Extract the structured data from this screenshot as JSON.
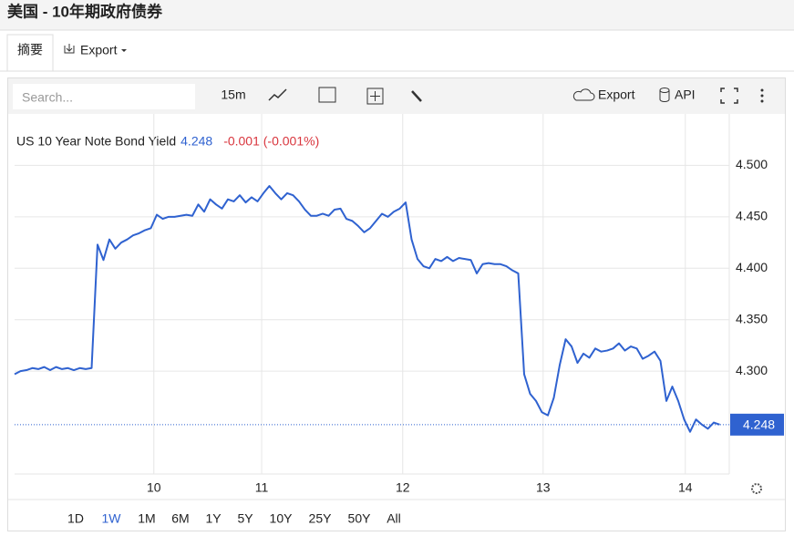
{
  "header": {
    "title": "美国 - 10年期政府债券"
  },
  "tabs": [
    "摘要",
    "Export"
  ],
  "toolbar": {
    "search_placeholder": "Search...",
    "interval": "15m",
    "export": "Export",
    "api": "API"
  },
  "chart_data": {
    "type": "line",
    "change": "-0.001 (-0.001%)",
    "series": [
      {
        "name": "US 10 Year Note Bond Yield",
        "color": "#2f62d0",
        "values": [
          4.297,
          4.3,
          4.301,
          4.303,
          4.302,
          4.304,
          4.301,
          4.304,
          4.302,
          4.303,
          4.301,
          4.303,
          4.302,
          4.303,
          4.423,
          4.408,
          4.428,
          4.419,
          4.425,
          4.428,
          4.432,
          4.434,
          4.437,
          4.439,
          4.452,
          4.448,
          4.45,
          4.45,
          4.451,
          4.452,
          4.451,
          4.462,
          4.455,
          4.467,
          4.462,
          4.458,
          4.467,
          4.465,
          4.471,
          4.464,
          4.469,
          4.465,
          4.473,
          4.48,
          4.473,
          4.467,
          4.473,
          4.471,
          4.465,
          4.457,
          4.451,
          4.451,
          4.453,
          4.451,
          4.457,
          4.458,
          4.448,
          4.446,
          4.441,
          4.435,
          4.439,
          4.446,
          4.453,
          4.45,
          4.455,
          4.458,
          4.464,
          4.428,
          4.409,
          4.402,
          4.4,
          4.409,
          4.407,
          4.411,
          4.407,
          4.41,
          4.409,
          4.408,
          4.395,
          4.404,
          4.405,
          4.404,
          4.404,
          4.402,
          4.398,
          4.395,
          4.297,
          4.278,
          4.271,
          4.26,
          4.257,
          4.274,
          4.306,
          4.331,
          4.324,
          4.308,
          4.317,
          4.313,
          4.322,
          4.319,
          4.32,
          4.322,
          4.327,
          4.32,
          4.324,
          4.322,
          4.312,
          4.315,
          4.319,
          4.31,
          4.271,
          4.285,
          4.271,
          4.253,
          4.241,
          4.253,
          4.248,
          4.244,
          4.25,
          4.248
        ]
      }
    ],
    "xlim": [
      0,
      121
    ],
    "xticks": [
      {
        "value": 23.5,
        "label": "10"
      },
      {
        "value": 41.7,
        "label": "11"
      },
      {
        "value": 65.5,
        "label": "12"
      },
      {
        "value": 89.2,
        "label": "13"
      },
      {
        "value": 113.2,
        "label": "14"
      }
    ],
    "ylim": [
      4.2,
      4.55
    ],
    "yticks": [
      {
        "value": 4.3,
        "label": "4.300"
      },
      {
        "value": 4.35,
        "label": "4.350"
      },
      {
        "value": 4.4,
        "label": "4.400"
      },
      {
        "value": 4.45,
        "label": "4.450"
      },
      {
        "value": 4.5,
        "label": "4.500"
      }
    ],
    "grid": true
  },
  "ranges": [
    "1D",
    "1W",
    "1M",
    "6M",
    "1Y",
    "5Y",
    "10Y",
    "25Y",
    "50Y",
    "All"
  ],
  "active_range": 1
}
